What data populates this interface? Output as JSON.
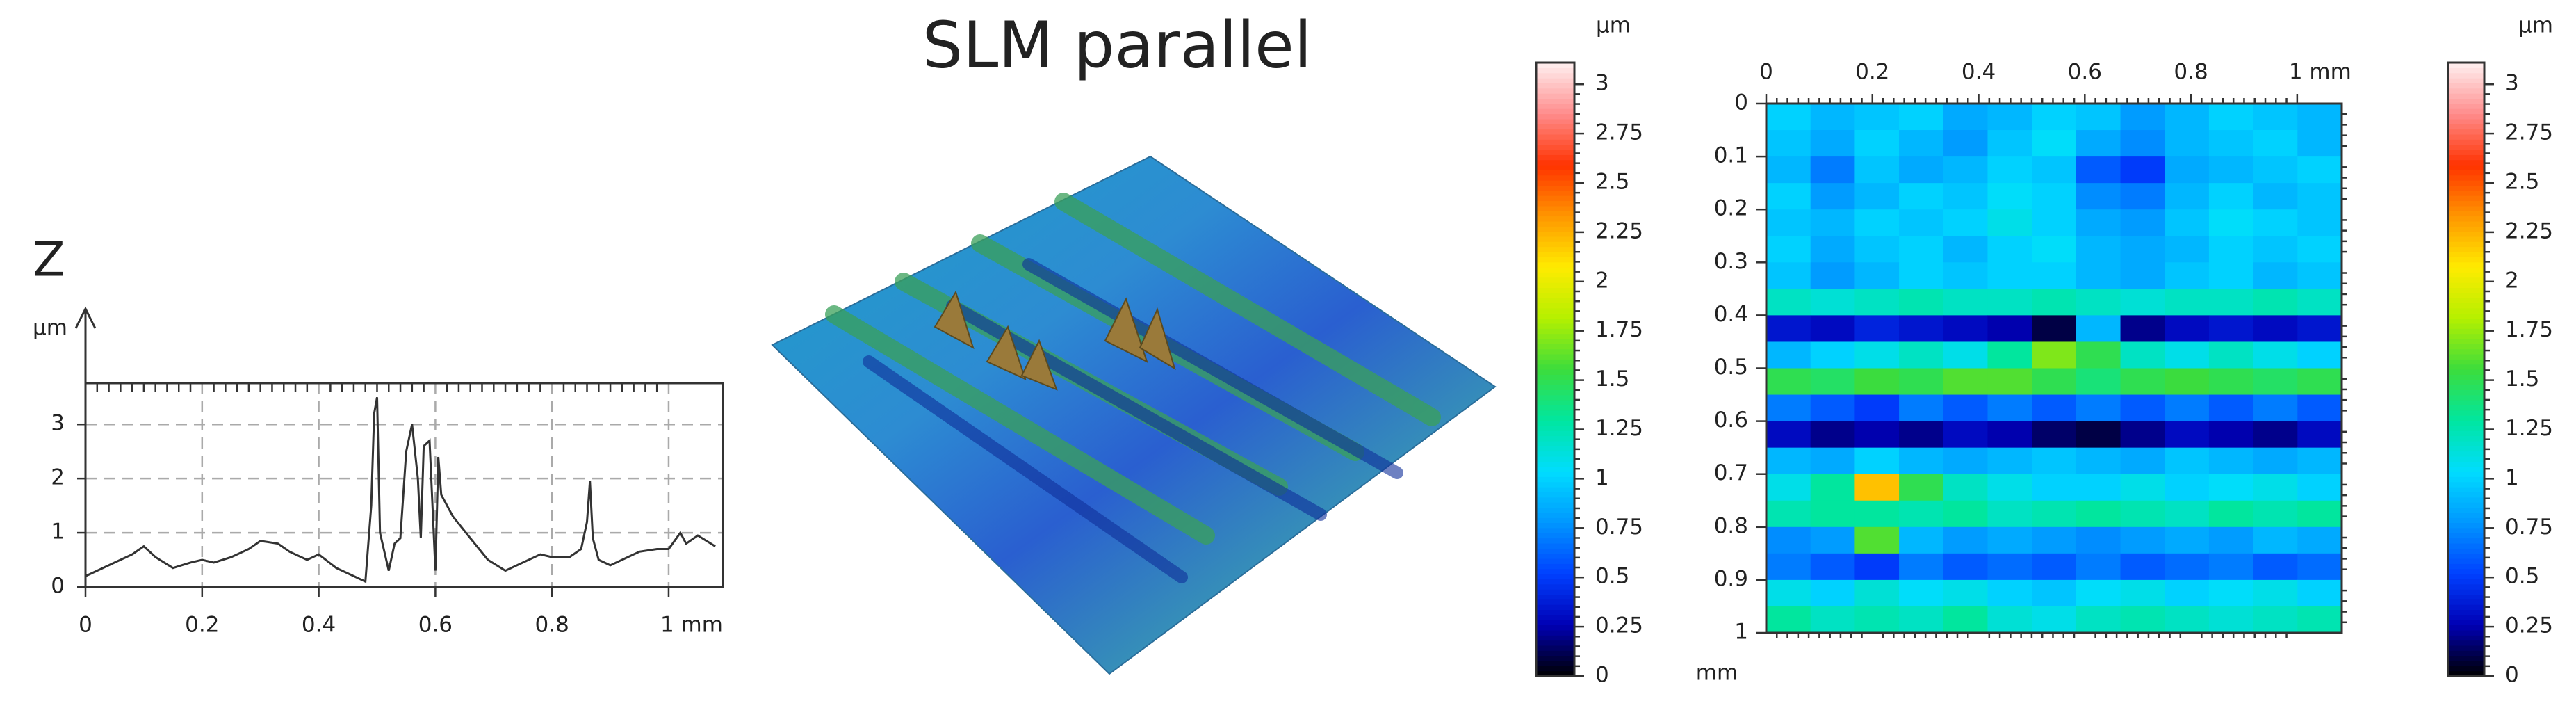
{
  "chart_data": [
    {
      "type": "line",
      "ylabel": "Z",
      "yunit": "µm",
      "color": "#333333",
      "x": [
        0,
        0.02,
        0.05,
        0.08,
        0.1,
        0.12,
        0.15,
        0.18,
        0.2,
        0.22,
        0.25,
        0.28,
        0.3,
        0.33,
        0.35,
        0.38,
        0.4,
        0.43,
        0.46,
        0.48,
        0.49,
        0.495,
        0.5,
        0.505,
        0.52,
        0.53,
        0.54,
        0.55,
        0.56,
        0.57,
        0.575,
        0.58,
        0.59,
        0.6,
        0.605,
        0.61,
        0.63,
        0.66,
        0.69,
        0.72,
        0.75,
        0.78,
        0.8,
        0.83,
        0.85,
        0.86,
        0.865,
        0.87,
        0.88,
        0.9,
        0.93,
        0.95,
        0.98,
        1.0,
        1.02,
        1.03,
        1.05,
        1.08
      ],
      "values": [
        0.2,
        0.3,
        0.45,
        0.6,
        0.75,
        0.55,
        0.35,
        0.45,
        0.5,
        0.45,
        0.55,
        0.7,
        0.85,
        0.8,
        0.65,
        0.5,
        0.6,
        0.35,
        0.2,
        0.1,
        1.5,
        3.2,
        3.5,
        1.0,
        0.3,
        0.8,
        0.9,
        2.5,
        3.0,
        2.0,
        0.9,
        2.6,
        2.7,
        0.3,
        2.4,
        1.7,
        1.3,
        0.9,
        0.5,
        0.3,
        0.45,
        0.6,
        0.55,
        0.55,
        0.7,
        1.2,
        1.95,
        0.9,
        0.5,
        0.4,
        0.55,
        0.65,
        0.7,
        0.7,
        1.0,
        0.8,
        0.95,
        0.75
      ],
      "xlim": [
        0,
        1.093
      ],
      "ylim": [
        0,
        3.76
      ],
      "xticks": [
        0,
        0.2,
        0.4,
        0.6,
        0.8,
        {
          "value": 1,
          "label": "1 mm"
        }
      ],
      "yticks": [
        0,
        1,
        2,
        3
      ],
      "grid": true
    },
    {
      "type": "surface",
      "title": "SLM parallel",
      "colorbar": {
        "unit": "µm",
        "lim": [
          0,
          3.11
        ],
        "ticks": [
          0,
          0.25,
          0.5,
          0.75,
          1,
          1.25,
          1.5,
          1.75,
          2,
          2.25,
          2.5,
          2.75,
          3
        ],
        "colormap": [
          "#000000",
          "#0000b4",
          "#0040ff",
          "#0096ff",
          "#00dcff",
          "#00e6a0",
          "#3cdc3c",
          "#b4f000",
          "#ffeb00",
          "#ff9600",
          "#ff3200",
          "#ff8c8c",
          "#fff0f0"
        ]
      }
    },
    {
      "type": "heatmap",
      "yunit": "mm",
      "xlim": [
        0,
        1.084
      ],
      "ylim": [
        0,
        1
      ],
      "xticks": [
        0,
        0.2,
        0.4,
        0.6,
        0.8,
        {
          "value": 1,
          "label": "1 mm"
        }
      ],
      "yticks": [
        0,
        0.1,
        0.2,
        0.3,
        0.4,
        0.5,
        0.6,
        0.7,
        0.8,
        0.9,
        1
      ],
      "values": [
        [
          1.0,
          0.9,
          0.95,
          1.0,
          0.85,
          0.9,
          1.0,
          0.95,
          0.8,
          0.9,
          1.0,
          0.95,
          0.9
        ],
        [
          0.95,
          0.85,
          1.0,
          0.9,
          0.8,
          0.95,
          1.05,
          0.85,
          0.75,
          0.9,
          0.95,
          1.0,
          0.9
        ],
        [
          0.9,
          0.7,
          0.95,
          0.85,
          0.9,
          1.0,
          0.95,
          0.6,
          0.5,
          0.85,
          0.9,
          0.95,
          1.0
        ],
        [
          1.0,
          0.8,
          0.9,
          1.0,
          0.95,
          1.05,
          1.0,
          0.75,
          0.7,
          0.9,
          1.0,
          0.9,
          0.95
        ],
        [
          0.95,
          0.9,
          1.0,
          0.95,
          1.0,
          1.1,
          1.0,
          0.85,
          0.8,
          0.95,
          1.05,
          1.0,
          0.95
        ],
        [
          1.0,
          0.85,
          0.95,
          1.0,
          0.9,
          1.0,
          1.05,
          0.9,
          0.85,
          0.9,
          1.0,
          0.95,
          1.0
        ],
        [
          0.95,
          0.8,
          0.9,
          1.0,
          0.95,
          1.0,
          1.0,
          0.9,
          0.85,
          0.95,
          1.0,
          0.9,
          0.95
        ],
        [
          1.2,
          1.15,
          1.2,
          1.25,
          1.2,
          1.2,
          1.25,
          1.2,
          1.15,
          1.2,
          1.2,
          1.25,
          1.2
        ],
        [
          0.35,
          0.3,
          0.4,
          0.35,
          0.3,
          0.25,
          0.1,
          0.9,
          0.2,
          0.3,
          0.35,
          0.3,
          0.35
        ],
        [
          0.9,
          1.0,
          1.1,
          1.2,
          1.1,
          1.3,
          1.7,
          1.5,
          1.2,
          1.1,
          1.2,
          1.1,
          1.0
        ],
        [
          1.5,
          1.45,
          1.55,
          1.5,
          1.6,
          1.6,
          1.5,
          1.4,
          1.5,
          1.55,
          1.5,
          1.45,
          1.5
        ],
        [
          0.7,
          0.6,
          0.5,
          0.7,
          0.6,
          0.7,
          0.6,
          0.7,
          0.6,
          0.7,
          0.6,
          0.7,
          0.6
        ],
        [
          0.3,
          0.2,
          0.25,
          0.2,
          0.3,
          0.25,
          0.15,
          0.1,
          0.2,
          0.3,
          0.25,
          0.2,
          0.3
        ],
        [
          0.9,
          0.85,
          1.0,
          0.9,
          0.85,
          0.9,
          0.95,
          0.9,
          0.85,
          0.95,
          0.9,
          0.85,
          0.9
        ],
        [
          1.1,
          1.3,
          2.2,
          1.5,
          1.2,
          1.1,
          1.0,
          1.0,
          1.1,
          1.0,
          1.05,
          1.1,
          1.0
        ],
        [
          1.25,
          1.3,
          1.3,
          1.25,
          1.3,
          1.2,
          1.25,
          1.3,
          1.25,
          1.2,
          1.3,
          1.25,
          1.3
        ],
        [
          0.75,
          0.8,
          1.6,
          0.9,
          0.8,
          0.85,
          0.8,
          0.75,
          0.8,
          0.85,
          0.8,
          0.9,
          0.85
        ],
        [
          0.7,
          0.6,
          0.5,
          0.7,
          0.6,
          0.65,
          0.6,
          0.7,
          0.6,
          0.65,
          0.7,
          0.6,
          0.65
        ],
        [
          1.1,
          1.0,
          1.15,
          1.05,
          1.1,
          1.0,
          0.95,
          1.05,
          1.1,
          1.0,
          1.05,
          1.1,
          1.0
        ],
        [
          1.3,
          1.2,
          1.25,
          1.2,
          1.3,
          1.15,
          1.1,
          1.2,
          1.25,
          1.2,
          1.15,
          1.2,
          1.25
        ]
      ],
      "colorbar": {
        "unit": "µm",
        "lim": [
          0,
          3.11
        ],
        "ticks": [
          0,
          0.25,
          0.5,
          0.75,
          1,
          1.25,
          1.5,
          1.75,
          2,
          2.25,
          2.5,
          2.75,
          3
        ],
        "colormap": [
          "#000000",
          "#0000b4",
          "#0040ff",
          "#0096ff",
          "#00dcff",
          "#00e6a0",
          "#3cdc3c",
          "#b4f000",
          "#ffeb00",
          "#ff9600",
          "#ff3200",
          "#ff8c8c",
          "#fff0f0"
        ]
      }
    }
  ]
}
